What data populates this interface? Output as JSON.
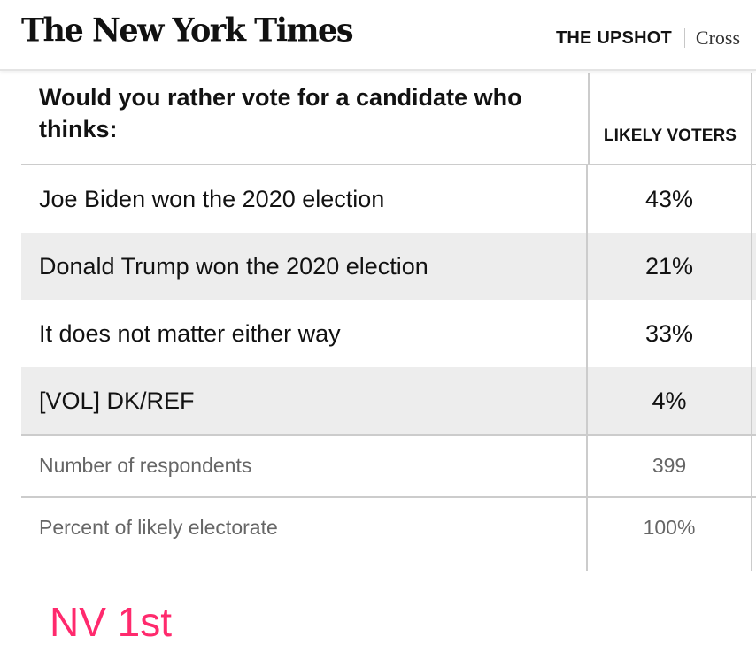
{
  "masthead": {
    "logo": "The New York Times",
    "section": "THE UPSHOT",
    "article_title_partial": "Cross"
  },
  "table": {
    "question": "Would you rather vote for a candidate who thinks:",
    "column_header": "LIKELY VOTERS",
    "rows": [
      {
        "label": "Joe Biden won the 2020 election",
        "value": "43%"
      },
      {
        "label": "Donald Trump won the 2020 election",
        "value": "21%"
      },
      {
        "label": "It does not matter either way",
        "value": "33%"
      },
      {
        "label": "[VOL] DK/REF",
        "value": "4%"
      }
    ],
    "meta": [
      {
        "label": "Number of respondents",
        "value": "399"
      },
      {
        "label": "Percent of likely electorate",
        "value": "100%"
      }
    ]
  },
  "annotation": {
    "text": "NV 1st",
    "color": "#ff2a6d"
  },
  "colors": {
    "row_shade": "#ededed",
    "rule": "#cccccc",
    "meta_text": "#666666"
  }
}
